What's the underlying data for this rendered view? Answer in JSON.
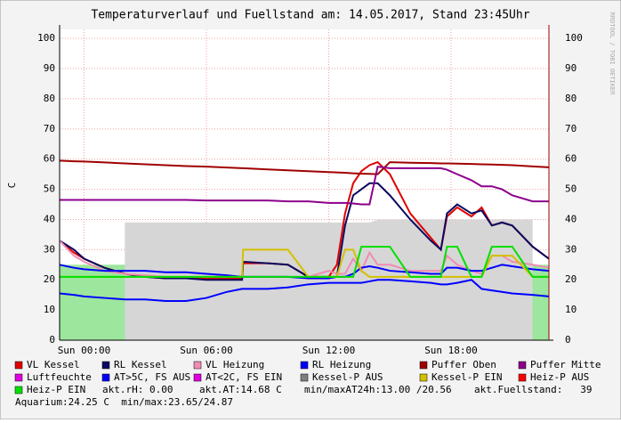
{
  "chart_data": {
    "type": "line",
    "title": "Temperaturverlauf und Fuellstand am: 14.05.2017, Stand 23:45Uhr",
    "y_label": "C",
    "credit": "RRDTOOL / TOBI OETIKER",
    "x": [
      -1.2,
      -0.5,
      0,
      1,
      2,
      3,
      4,
      5,
      6,
      7,
      7.75,
      7.8,
      9,
      10,
      11,
      12,
      12.4,
      12.8,
      13.2,
      13.6,
      14,
      14.4,
      15,
      16,
      17,
      17.5,
      17.8,
      18.3,
      19,
      19.5,
      20,
      20.5,
      21,
      22,
      22.8
    ],
    "xlim": [
      -1.2,
      22.8
    ],
    "xticks": [
      {
        "value": 0,
        "label": "Sun 00:00"
      },
      {
        "value": 6,
        "label": "Sun 06:00"
      },
      {
        "value": 12,
        "label": "Sun 12:00"
      },
      {
        "value": 18,
        "label": "Sun 18:00"
      }
    ],
    "ylim": [
      0,
      103
    ],
    "yticks": [
      0,
      10,
      20,
      30,
      40,
      50,
      60,
      70,
      80,
      90,
      100
    ],
    "grid": true,
    "series": [
      {
        "name": "VL Kessel",
        "color": "#e00000",
        "values": [
          33,
          29,
          27,
          24,
          22,
          21,
          20.5,
          20.5,
          20.5,
          20.5,
          20.5,
          25.5,
          25.5,
          25,
          21,
          21,
          25,
          42,
          52,
          56,
          58,
          59,
          55,
          42,
          34,
          30,
          41,
          44,
          41,
          44,
          38,
          39,
          38,
          31,
          27
        ]
      },
      {
        "name": "RL Kessel",
        "color": "#0a0a60",
        "values": [
          33,
          30,
          27,
          24,
          22,
          21,
          20.5,
          20.5,
          20,
          20,
          20,
          26,
          25.5,
          25,
          21,
          21,
          21,
          38,
          48,
          50,
          52,
          52,
          48,
          40,
          33,
          30,
          42,
          45,
          42,
          43,
          38,
          39,
          38,
          31,
          27
        ]
      },
      {
        "name": "VL Heizung",
        "color": "#f08cb4",
        "values": [
          33,
          28,
          26,
          23,
          22,
          21.5,
          21,
          21,
          21,
          21,
          21,
          21,
          21,
          21,
          21,
          23,
          22,
          22,
          27,
          23,
          29,
          25,
          25,
          23,
          23,
          23,
          28,
          25,
          23,
          22,
          28,
          28,
          26,
          25,
          24
        ]
      },
      {
        "name": "RL Heizung",
        "color": "#0000ff",
        "values": [
          25,
          24,
          23.5,
          23,
          23,
          23,
          22.5,
          22.5,
          22,
          21.5,
          21,
          21,
          21,
          21,
          20.5,
          20.5,
          21,
          21,
          22,
          24,
          24.5,
          24,
          23,
          22.5,
          22,
          22,
          24,
          24,
          23,
          23,
          24,
          25,
          24.5,
          23.5,
          23
        ]
      },
      {
        "name": "Puffer Oben",
        "color": "#a00000",
        "values": [
          59.5,
          59.3,
          59.2,
          58.9,
          58.6,
          58.3,
          58,
          57.7,
          57.5,
          57.2,
          57,
          57,
          56.6,
          56.3,
          56,
          55.7,
          55.6,
          55.5,
          55.3,
          55.2,
          55.1,
          55,
          59,
          58.8,
          58.7,
          58.6,
          58.6,
          58.5,
          58.4,
          58.3,
          58.2,
          58.1,
          58,
          57.6,
          57.3
        ]
      },
      {
        "name": "Puffer Mitte",
        "color": "#8c008c",
        "values": [
          46.5,
          46.5,
          46.5,
          46.5,
          46.5,
          46.5,
          46.5,
          46.5,
          46.3,
          46.3,
          46.3,
          46.3,
          46.3,
          46,
          46,
          45.5,
          45.5,
          45.5,
          45.3,
          45,
          45,
          57.5,
          57,
          57,
          57,
          57,
          56.5,
          55,
          53,
          51,
          51,
          50,
          48,
          46,
          46
        ]
      },
      {
        "name": "Luftfeuchte",
        "color": "#e000e0",
        "style": "area",
        "fill": "#9de69d",
        "values": [
          25,
          25,
          25,
          25,
          25,
          25,
          25,
          25,
          25,
          25,
          25,
          25,
          25,
          25,
          25,
          25,
          25,
          25,
          25,
          25,
          25,
          25,
          25,
          25,
          25,
          25,
          28,
          28,
          28,
          28,
          28,
          28,
          28,
          25,
          25
        ]
      },
      {
        "name": "AT>5C, FS AUS",
        "color": "#0000ff",
        "values": [
          15.5,
          15,
          14.5,
          14,
          13.5,
          13.5,
          13,
          13,
          14,
          16,
          17,
          17,
          17,
          17.5,
          18.5,
          19,
          19,
          19,
          19,
          19,
          19.5,
          20,
          20,
          19.5,
          19,
          18.5,
          18.5,
          19,
          20,
          17,
          16.5,
          16,
          15.5,
          15,
          14.5
        ]
      },
      {
        "name": "AT<2C, FS EIN",
        "color": "#e000e0",
        "values": [
          null,
          null,
          null,
          null,
          null,
          null,
          null,
          null,
          null,
          null,
          null,
          null,
          null,
          null,
          null,
          null,
          null,
          null,
          null,
          null,
          null,
          null,
          null,
          null,
          null,
          null,
          null,
          null,
          null,
          null,
          null,
          null,
          null,
          null,
          null
        ]
      },
      {
        "name": "Kessel-P AUS",
        "color": "#808080",
        "style": "area",
        "fill": "#d6d6d6",
        "values": [
          null,
          null,
          null,
          null,
          39,
          39,
          39,
          39,
          39,
          39,
          39,
          39,
          39,
          39,
          39,
          39,
          39,
          39,
          39,
          39,
          39,
          40,
          40,
          40,
          40,
          40,
          40,
          40,
          40,
          40,
          40,
          40,
          40,
          40,
          null
        ]
      },
      {
        "name": "Kessel-P EIN",
        "color": "#d4c000",
        "values": [
          21,
          21,
          21,
          21,
          21,
          21,
          21,
          21,
          21,
          21,
          21,
          30,
          30,
          30,
          21,
          21,
          21,
          30,
          30,
          23,
          21,
          21,
          21,
          21,
          21,
          21,
          21,
          21,
          21,
          21,
          28,
          28,
          28,
          21,
          21
        ]
      },
      {
        "name": "Heiz-P AUS",
        "color": "#ff0000",
        "values": [
          null,
          null,
          null,
          null,
          null,
          null,
          null,
          null,
          null,
          null,
          null,
          null,
          null,
          null,
          null,
          null,
          null,
          null,
          null,
          null,
          null,
          null,
          null,
          null,
          null,
          null,
          null,
          null,
          null,
          null,
          null,
          null,
          null,
          null,
          null
        ]
      },
      {
        "name": "Heiz-P EIN",
        "color": "#00e000",
        "values": [
          21,
          21,
          21,
          21,
          21,
          21,
          21,
          21,
          21,
          21,
          21,
          21,
          21,
          21,
          21,
          21,
          21,
          21,
          21,
          31,
          31,
          31,
          31,
          21,
          21,
          21,
          31,
          31,
          21,
          21,
          31,
          31,
          31,
          21,
          21
        ]
      }
    ],
    "notes": [
      "akt.rH: 0.00",
      "akt.AT:14.68 C",
      "min/maxAT24h:13.00 /20.56",
      "akt.Fuellstand:   39",
      "Aquarium:24.25 C  min/max:23.65/24.87"
    ]
  }
}
